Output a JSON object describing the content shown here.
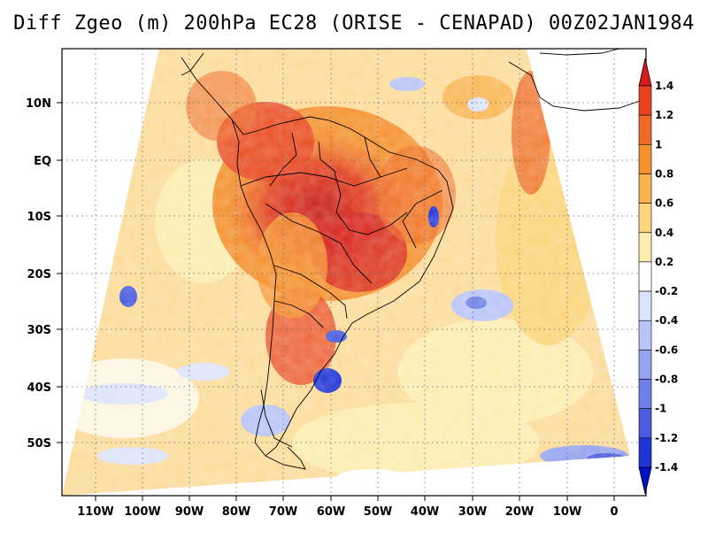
{
  "title": "Diff Zgeo (m) 200hPa EC28 (ORISE - CENAPAD) 00Z02JAN1984",
  "lat_labels": [
    "10N",
    "EQ",
    "10S",
    "20S",
    "30S",
    "40S",
    "50S"
  ],
  "lon_labels": [
    "110W",
    "100W",
    "90W",
    "80W",
    "70W",
    "60W",
    "50W",
    "40W",
    "30W",
    "20W",
    "10W",
    "0"
  ],
  "colorbar": {
    "labels": [
      "1.4",
      "1.2",
      "1",
      "0.8",
      "0.6",
      "0.4",
      "0.2",
      "-0.2",
      "-0.4",
      "-0.6",
      "-0.8",
      "-1",
      "-1.2",
      "-1.4"
    ],
    "colors": [
      "#d61d1d",
      "#e8421e",
      "#ef6a28",
      "#f5922f",
      "#f9b450",
      "#fcd57c",
      "#fdedb0",
      "#ffffff",
      "#dde3fb",
      "#b9c4f6",
      "#95a3ee",
      "#6f80e6",
      "#4a5ddf",
      "#1f35d8",
      "#0012c8"
    ]
  }
}
